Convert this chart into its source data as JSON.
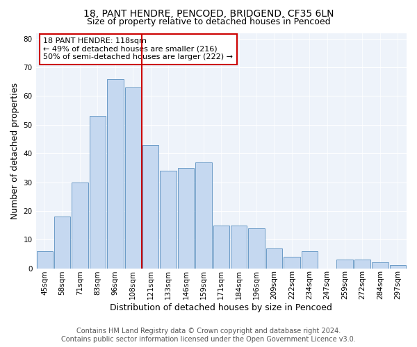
{
  "title1": "18, PANT HENDRE, PENCOED, BRIDGEND, CF35 6LN",
  "title2": "Size of property relative to detached houses in Pencoed",
  "xlabel": "Distribution of detached houses by size in Pencoed",
  "ylabel": "Number of detached properties",
  "categories": [
    "45sqm",
    "58sqm",
    "71sqm",
    "83sqm",
    "96sqm",
    "108sqm",
    "121sqm",
    "133sqm",
    "146sqm",
    "159sqm",
    "171sqm",
    "184sqm",
    "196sqm",
    "209sqm",
    "222sqm",
    "234sqm",
    "247sqm",
    "259sqm",
    "272sqm",
    "284sqm",
    "297sqm"
  ],
  "values": [
    6,
    18,
    30,
    53,
    66,
    63,
    43,
    34,
    35,
    37,
    15,
    15,
    14,
    7,
    4,
    6,
    0,
    3,
    3,
    2,
    1
  ],
  "bar_color": "#c5d8f0",
  "bar_edge_color": "#5a8fc0",
  "vline_x": 5.5,
  "vline_color": "#cc0000",
  "annotation_line1": "18 PANT HENDRE: 118sqm",
  "annotation_line2": "← 49% of detached houses are smaller (216)",
  "annotation_line3": "50% of semi-detached houses are larger (222) →",
  "annotation_box_color": "#cc0000",
  "ylim": [
    0,
    82
  ],
  "yticks": [
    0,
    10,
    20,
    30,
    40,
    50,
    60,
    70,
    80
  ],
  "footer1": "Contains HM Land Registry data © Crown copyright and database right 2024.",
  "footer2": "Contains public sector information licensed under the Open Government Licence v3.0.",
  "bg_color": "#eef3fa",
  "grid_color": "#ffffff",
  "title1_fontsize": 10,
  "title2_fontsize": 9,
  "axis_label_fontsize": 9,
  "tick_fontsize": 7.5,
  "annotation_fontsize": 8,
  "footer_fontsize": 7
}
